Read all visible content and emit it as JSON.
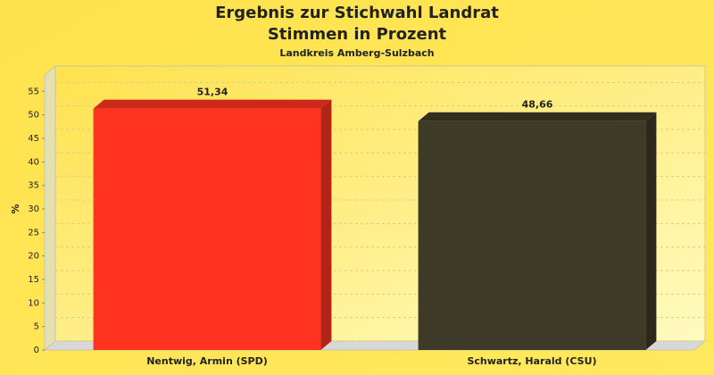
{
  "chart_data": {
    "type": "bar",
    "title": [
      "Ergebnis zur Stichwahl Landrat",
      "Stimmen in Prozent"
    ],
    "subtitle": "Landkreis Amberg-Sulzbach",
    "y_label": "%",
    "categories": [
      "Nentwig, Armin (SPD)",
      "Schwartz, Harald (CSU)"
    ],
    "values": [
      51.34,
      48.66
    ],
    "value_labels": [
      "51,34",
      "48,66"
    ],
    "colors": [
      "#ff3320",
      "#3d3a27"
    ],
    "ylim": [
      0,
      60
    ],
    "yticks": [
      0,
      5,
      10,
      15,
      20,
      25,
      30,
      35,
      40,
      45,
      50,
      55
    ],
    "grid": true
  }
}
